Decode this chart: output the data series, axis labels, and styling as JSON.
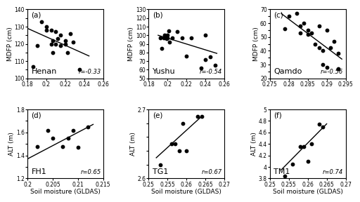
{
  "panels": [
    {
      "label": "(a)",
      "station": "Henan",
      "r": "r=-0.33",
      "xlabel_show": false,
      "ylabel": "MDFP (cm)",
      "xlim": [
        0.18,
        0.26
      ],
      "ylim": [
        100,
        140
      ],
      "yticks": [
        100,
        105,
        110,
        115,
        120,
        125,
        130,
        135,
        140
      ],
      "ytick_labels": [
        "100",
        "",
        "110",
        "",
        "120",
        "",
        "130",
        "",
        "140"
      ],
      "xticks": [
        0.18,
        0.2,
        0.22,
        0.24,
        0.26
      ],
      "xtick_labels": [
        "0.18",
        "0.2",
        "0.22",
        "0.24",
        "0.26"
      ],
      "x": [
        0.186,
        0.19,
        0.195,
        0.2,
        0.2,
        0.205,
        0.205,
        0.207,
        0.207,
        0.21,
        0.21,
        0.212,
        0.215,
        0.215,
        0.22,
        0.22,
        0.222,
        0.225,
        0.228,
        0.235
      ],
      "y": [
        107,
        119,
        133,
        128,
        130,
        120,
        128,
        115,
        122,
        120,
        127,
        123,
        119,
        125,
        120,
        122,
        115,
        126,
        121,
        105
      ],
      "trendline": [
        [
          0.18,
          0.245
        ],
        [
          129,
          113
        ]
      ]
    },
    {
      "label": "(b)",
      "station": "Yushu",
      "r": "r=-0.54",
      "xlabel_show": false,
      "ylabel": "MDFP (cm)",
      "xlim": [
        0.18,
        0.26
      ],
      "ylim": [
        50,
        130
      ],
      "yticks": [
        50,
        60,
        70,
        80,
        90,
        100,
        110,
        120,
        130
      ],
      "ytick_labels": [
        "50",
        "60",
        "70",
        "80",
        "90",
        "100",
        "110",
        "120",
        "130"
      ],
      "xticks": [
        0.18,
        0.2,
        0.22,
        0.24,
        0.26
      ],
      "xtick_labels": [
        "0.18",
        "0.2",
        "0.22",
        "0.24",
        "0.26"
      ],
      "x": [
        0.192,
        0.194,
        0.196,
        0.197,
        0.198,
        0.199,
        0.2,
        0.2,
        0.201,
        0.202,
        0.205,
        0.21,
        0.215,
        0.22,
        0.225,
        0.235,
        0.24,
        0.24,
        0.245,
        0.25
      ],
      "y": [
        97,
        85,
        97,
        100,
        97,
        96,
        97,
        100,
        105,
        92,
        97,
        104,
        97,
        76,
        97,
        62,
        100,
        72,
        75,
        65
      ],
      "trendline": [
        [
          0.19,
          0.252
        ],
        [
          100,
          79
        ]
      ]
    },
    {
      "label": "(c)",
      "station": "Qamdo",
      "r": "r=-0.56",
      "xlabel_show": false,
      "ylabel": "MDFP (cm)",
      "xlim": [
        0.275,
        0.295
      ],
      "ylim": [
        20,
        70
      ],
      "yticks": [
        20,
        25,
        30,
        35,
        40,
        45,
        50,
        55,
        60,
        65,
        70
      ],
      "ytick_labels": [
        "20",
        "",
        "30",
        "",
        "40",
        "",
        "50",
        "",
        "60",
        "",
        "70"
      ],
      "xticks": [
        0.275,
        0.28,
        0.285,
        0.29,
        0.295
      ],
      "xtick_labels": [
        "0.275",
        "0.28",
        "0.285",
        "0.29",
        "0.295"
      ],
      "x": [
        0.279,
        0.28,
        0.282,
        0.283,
        0.283,
        0.284,
        0.285,
        0.285,
        0.286,
        0.287,
        0.288,
        0.288,
        0.289,
        0.289,
        0.29,
        0.29,
        0.291,
        0.292,
        0.293,
        0.293
      ],
      "y": [
        56,
        65,
        67,
        53,
        58,
        60,
        52,
        55,
        53,
        45,
        58,
        42,
        40,
        30,
        55,
        28,
        42,
        47,
        38,
        27
      ],
      "trendline": [
        [
          0.278,
          0.294
        ],
        [
          67,
          34
        ]
      ]
    },
    {
      "label": "(d)",
      "station": "FH1",
      "r": "r=0.65",
      "xlabel_show": true,
      "ylabel": "ALT (m)",
      "xlim": [
        0.2,
        0.215
      ],
      "ylim": [
        1.2,
        1.8
      ],
      "yticks": [
        1.2,
        1.3,
        1.4,
        1.5,
        1.6,
        1.7,
        1.8
      ],
      "ytick_labels": [
        "1.2",
        "",
        "1.4",
        "",
        "1.6",
        "",
        "1.8"
      ],
      "xticks": [
        0.2,
        0.205,
        0.21,
        0.215
      ],
      "xtick_labels": [
        "0.2",
        "0.205",
        "0.21",
        "0.215"
      ],
      "x": [
        0.202,
        0.204,
        0.205,
        0.207,
        0.208,
        0.209,
        0.21,
        0.212
      ],
      "y": [
        1.48,
        1.62,
        1.55,
        1.48,
        1.55,
        1.62,
        1.47,
        1.65
      ],
      "trendline": [
        [
          0.2,
          0.213
        ],
        [
          1.37,
          1.67
        ]
      ]
    },
    {
      "label": "(e)",
      "station": "TG1",
      "r": "r=0.67",
      "xlabel_show": true,
      "ylabel": "ALT (m)",
      "xlim": [
        0.25,
        0.27
      ],
      "ylim": [
        2.6,
        2.7
      ],
      "yticks": [
        2.6,
        2.62,
        2.64,
        2.66,
        2.68,
        2.7
      ],
      "ytick_labels": [
        "2.6",
        "",
        "",
        "",
        "",
        "2.7"
      ],
      "xticks": [
        0.25,
        0.255,
        0.26,
        0.265,
        0.27
      ],
      "xtick_labels": [
        "0.25",
        "0.255",
        "0.26",
        "0.265",
        "0.27"
      ],
      "x": [
        0.253,
        0.256,
        0.257,
        0.258,
        0.259,
        0.26,
        0.263,
        0.264
      ],
      "y": [
        2.62,
        2.65,
        2.65,
        2.64,
        2.68,
        2.64,
        2.69,
        2.69
      ],
      "trendline": [
        [
          0.252,
          0.264
        ],
        [
          2.63,
          2.69
        ]
      ]
    },
    {
      "label": "(f)",
      "station": "TM1",
      "r": "r=0.74",
      "xlabel_show": true,
      "ylabel": "ALT (m)",
      "xlim": [
        0.25,
        0.27
      ],
      "ylim": [
        3.8,
        5.0
      ],
      "yticks": [
        3.8,
        4.0,
        4.2,
        4.4,
        4.6,
        4.8,
        5.0
      ],
      "ytick_labels": [
        "3.8",
        "4",
        "4.2",
        "4.4",
        "4.6",
        "4.8",
        "5"
      ],
      "xticks": [
        0.25,
        0.255,
        0.26,
        0.265,
        0.27
      ],
      "xtick_labels": [
        "0.25",
        "0.255",
        "0.26",
        "0.265",
        "0.27"
      ],
      "x": [
        0.254,
        0.256,
        0.258,
        0.259,
        0.26,
        0.261,
        0.263,
        0.264
      ],
      "y": [
        3.84,
        4.05,
        4.35,
        4.35,
        4.1,
        4.4,
        4.75,
        4.7
      ],
      "trendline": [
        [
          0.253,
          0.265
        ],
        [
          3.95,
          4.75
        ]
      ]
    }
  ],
  "xlabel_bottom": "Soil moisture (GLDAS)",
  "tick_fontsize": 5.5,
  "label_fontsize": 6.5,
  "station_fontsize": 8,
  "r_fontsize": 6,
  "dot_size": 10,
  "dot_color": "#000000",
  "line_color": "#000000",
  "bg_color": "#ffffff"
}
